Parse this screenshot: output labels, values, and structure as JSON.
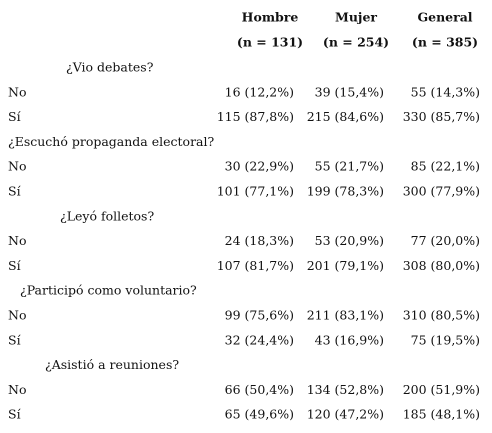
{
  "header": {
    "columns": [
      "Hombre",
      "Mujer",
      "General"
    ],
    "n": [
      "(n = 131)",
      "(n = 254)",
      "(n = 385)"
    ]
  },
  "sections": [
    {
      "question": "¿Vio debates?",
      "rows": [
        {
          "label": "No",
          "cells": [
            "16 (12,2%)",
            "39 (15,4%)",
            "55 (14,3%)"
          ]
        },
        {
          "label": "Sí",
          "cells": [
            "115 (87,8%)",
            "215 (84,6%)",
            "330 (85,7%)"
          ]
        }
      ]
    },
    {
      "question": "¿Escuchó propaganda electoral?",
      "rows": [
        {
          "label": "No",
          "cells": [
            "30 (22,9%)",
            "55 (21,7%)",
            "85 (22,1%)"
          ]
        },
        {
          "label": "Sí",
          "cells": [
            "101 (77,1%)",
            "199 (78,3%)",
            "300 (77,9%)"
          ]
        }
      ]
    },
    {
      "question": "¿Leyó folletos?",
      "rows": [
        {
          "label": "No",
          "cells": [
            "24 (18,3%)",
            "53 (20,9%)",
            "77 (20,0%)"
          ]
        },
        {
          "label": "Sí",
          "cells": [
            "107 (81,7%)",
            "201 (79,1%)",
            "308 (80,0%)"
          ]
        }
      ]
    },
    {
      "question": "¿Participó como voluntario?",
      "rows": [
        {
          "label": "No",
          "cells": [
            "99 (75,6%)",
            "211 (83,1%)",
            "310 (80,5%)"
          ]
        },
        {
          "label": "Sí",
          "cells": [
            "32 (24,4%)",
            "43 (16,9%)",
            "75 (19,5%)"
          ]
        }
      ]
    },
    {
      "question": "¿Asistió a reuniones?",
      "rows": [
        {
          "label": "No",
          "cells": [
            "66 (50,4%)",
            "134 (52,8%)",
            "200 (51,9%)"
          ]
        },
        {
          "label": "Sí",
          "cells": [
            "65 (49,6%)",
            "120 (47,2%)",
            "185 (48,1%)"
          ]
        }
      ]
    }
  ]
}
